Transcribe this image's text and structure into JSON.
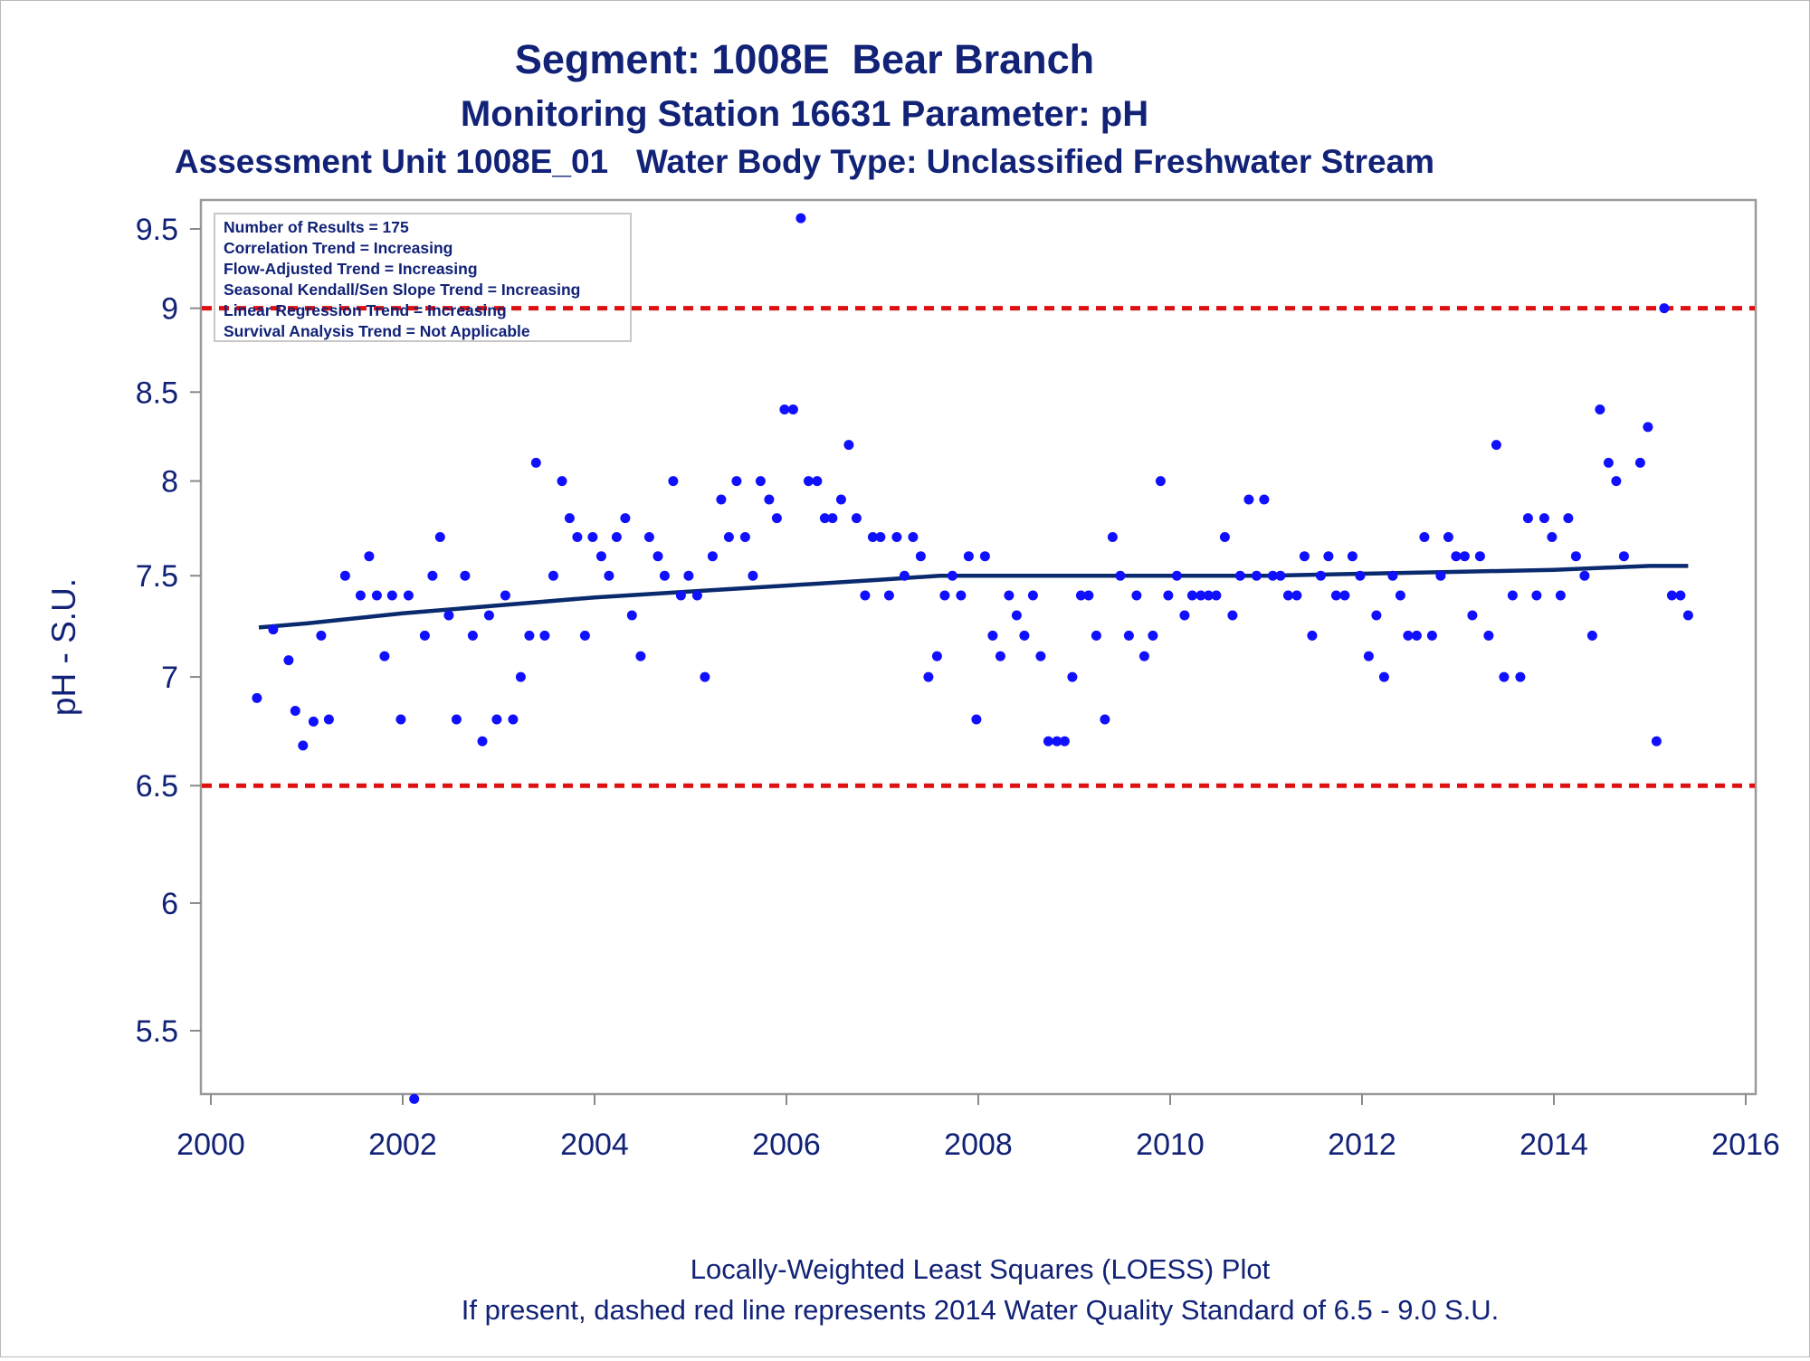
{
  "titles": {
    "line1": "Segment: 1008E  Bear Branch",
    "line2": "Monitoring Station 16631 Parameter: pH",
    "line3": "Assessment Unit 1008E_01   Water Body Type: Unclassified Freshwater Stream"
  },
  "stats_box": [
    "Number of Results = 175",
    "Correlation Trend = Increasing",
    "Flow-Adjusted Trend = Increasing",
    "Seasonal Kendall/Sen Slope Trend = Increasing",
    "Linear Regression Trend = Increasing",
    "Survival Analysis Trend = Not Applicable"
  ],
  "footnotes": {
    "line1": "Locally-Weighted Least Squares (LOESS) Plot",
    "line2": "If present, dashed red line represents 2014 Water Quality Standard of 6.5 - 9.0 S.U."
  },
  "colors": {
    "points": "#1010ff",
    "loess": "#0a2a6e",
    "standard": "#dd1111",
    "text": "#112277"
  },
  "chart_data": {
    "type": "scatter",
    "title": "Segment: 1008E  Bear Branch",
    "xlabel": "",
    "ylabel": "pH - S.U.",
    "y_scale": "log",
    "xlim": [
      2000,
      2016
    ],
    "ylim": [
      5.2,
      9.7
    ],
    "x_ticks": [
      2000,
      2002,
      2004,
      2006,
      2008,
      2010,
      2012,
      2014,
      2016
    ],
    "y_ticks": [
      5.5,
      6,
      6.5,
      7,
      7.5,
      8,
      8.5,
      9,
      9.5
    ],
    "y_tick_labels": [
      "5.5",
      "6",
      "6.5",
      "7",
      "7.5",
      "8",
      "8.5",
      "9",
      "9.5"
    ],
    "grid": false,
    "legend": "none",
    "reference_lines": [
      {
        "y": 9.0,
        "style": "dashed",
        "color": "red"
      },
      {
        "y": 6.5,
        "style": "dashed",
        "color": "red"
      }
    ],
    "series": [
      {
        "type": "scatter",
        "points": [
          [
            2000.48,
            6.9
          ],
          [
            2000.65,
            7.23
          ],
          [
            2000.81,
            7.08
          ],
          [
            2000.88,
            6.84
          ],
          [
            2000.96,
            6.68
          ],
          [
            2001.07,
            6.79
          ],
          [
            2001.15,
            7.2
          ],
          [
            2001.23,
            6.8
          ],
          [
            2001.4,
            7.5
          ],
          [
            2001.56,
            7.4
          ],
          [
            2001.65,
            7.6
          ],
          [
            2001.73,
            7.4
          ],
          [
            2001.81,
            7.1
          ],
          [
            2001.89,
            7.4
          ],
          [
            2001.98,
            6.8
          ],
          [
            2002.06,
            7.4
          ],
          [
            2002.12,
            5.25
          ],
          [
            2002.23,
            7.2
          ],
          [
            2002.31,
            7.5
          ],
          [
            2002.39,
            7.7
          ],
          [
            2002.48,
            7.3
          ],
          [
            2002.56,
            6.8
          ],
          [
            2002.65,
            7.5
          ],
          [
            2002.73,
            7.2
          ],
          [
            2002.83,
            6.7
          ],
          [
            2002.9,
            7.3
          ],
          [
            2002.98,
            6.8
          ],
          [
            2003.07,
            7.4
          ],
          [
            2003.15,
            6.8
          ],
          [
            2003.23,
            7.0
          ],
          [
            2003.32,
            7.2
          ],
          [
            2003.39,
            8.1
          ],
          [
            2003.48,
            7.2
          ],
          [
            2003.57,
            7.5
          ],
          [
            2003.66,
            8.0
          ],
          [
            2003.74,
            7.8
          ],
          [
            2003.82,
            7.7
          ],
          [
            2003.9,
            7.2
          ],
          [
            2003.98,
            7.7
          ],
          [
            2004.07,
            7.6
          ],
          [
            2004.15,
            7.5
          ],
          [
            2004.23,
            7.7
          ],
          [
            2004.32,
            7.8
          ],
          [
            2004.39,
            7.3
          ],
          [
            2004.48,
            7.1
          ],
          [
            2004.57,
            7.7
          ],
          [
            2004.66,
            7.6
          ],
          [
            2004.73,
            7.5
          ],
          [
            2004.82,
            8.0
          ],
          [
            2004.9,
            7.4
          ],
          [
            2004.98,
            7.5
          ],
          [
            2005.07,
            7.4
          ],
          [
            2005.15,
            7.0
          ],
          [
            2005.23,
            7.6
          ],
          [
            2005.32,
            7.9
          ],
          [
            2005.4,
            7.7
          ],
          [
            2005.48,
            8.0
          ],
          [
            2005.57,
            7.7
          ],
          [
            2005.65,
            7.5
          ],
          [
            2005.73,
            8.0
          ],
          [
            2005.82,
            7.9
          ],
          [
            2005.9,
            7.8
          ],
          [
            2005.98,
            8.4
          ],
          [
            2006.07,
            8.4
          ],
          [
            2006.15,
            9.57
          ],
          [
            2006.23,
            8.0
          ],
          [
            2006.32,
            8.0
          ],
          [
            2006.4,
            7.8
          ],
          [
            2006.48,
            7.8
          ],
          [
            2006.57,
            7.9
          ],
          [
            2006.65,
            8.2
          ],
          [
            2006.73,
            7.8
          ],
          [
            2006.82,
            7.4
          ],
          [
            2006.9,
            7.7
          ],
          [
            2006.98,
            7.7
          ],
          [
            2007.07,
            7.4
          ],
          [
            2007.15,
            7.7
          ],
          [
            2007.23,
            7.5
          ],
          [
            2007.32,
            7.7
          ],
          [
            2007.4,
            7.6
          ],
          [
            2007.48,
            7.0
          ],
          [
            2007.57,
            7.1
          ],
          [
            2007.65,
            7.4
          ],
          [
            2007.73,
            7.5
          ],
          [
            2007.82,
            7.4
          ],
          [
            2007.9,
            7.6
          ],
          [
            2007.98,
            6.8
          ],
          [
            2008.07,
            7.6
          ],
          [
            2008.15,
            7.2
          ],
          [
            2008.23,
            7.1
          ],
          [
            2008.32,
            7.4
          ],
          [
            2008.4,
            7.3
          ],
          [
            2008.48,
            7.2
          ],
          [
            2008.57,
            7.4
          ],
          [
            2008.65,
            7.1
          ],
          [
            2008.73,
            6.7
          ],
          [
            2008.82,
            6.7
          ],
          [
            2008.9,
            6.7
          ],
          [
            2008.98,
            7.0
          ],
          [
            2009.07,
            7.4
          ],
          [
            2009.15,
            7.4
          ],
          [
            2009.23,
            7.2
          ],
          [
            2009.32,
            6.8
          ],
          [
            2009.4,
            7.7
          ],
          [
            2009.48,
            7.5
          ],
          [
            2009.57,
            7.2
          ],
          [
            2009.65,
            7.4
          ],
          [
            2009.73,
            7.1
          ],
          [
            2009.82,
            7.2
          ],
          [
            2009.9,
            8.0
          ],
          [
            2009.98,
            7.4
          ],
          [
            2010.07,
            7.5
          ],
          [
            2010.15,
            7.3
          ],
          [
            2010.23,
            7.4
          ],
          [
            2010.32,
            7.4
          ],
          [
            2010.4,
            7.4
          ],
          [
            2010.48,
            7.4
          ],
          [
            2010.57,
            7.7
          ],
          [
            2010.65,
            7.3
          ],
          [
            2010.73,
            7.5
          ],
          [
            2010.82,
            7.9
          ],
          [
            2010.9,
            7.5
          ],
          [
            2010.98,
            7.9
          ],
          [
            2011.07,
            7.5
          ],
          [
            2011.15,
            7.5
          ],
          [
            2011.23,
            7.4
          ],
          [
            2011.32,
            7.4
          ],
          [
            2011.4,
            7.6
          ],
          [
            2011.48,
            7.2
          ],
          [
            2011.57,
            7.5
          ],
          [
            2011.65,
            7.6
          ],
          [
            2011.73,
            7.4
          ],
          [
            2011.82,
            7.4
          ],
          [
            2011.9,
            7.6
          ],
          [
            2011.98,
            7.5
          ],
          [
            2012.07,
            7.1
          ],
          [
            2012.15,
            7.3
          ],
          [
            2012.23,
            7.0
          ],
          [
            2012.32,
            7.5
          ],
          [
            2012.4,
            7.4
          ],
          [
            2012.48,
            7.2
          ],
          [
            2012.57,
            7.2
          ],
          [
            2012.65,
            7.7
          ],
          [
            2012.73,
            7.2
          ],
          [
            2012.82,
            7.5
          ],
          [
            2012.9,
            7.7
          ],
          [
            2012.98,
            7.6
          ],
          [
            2013.07,
            7.6
          ],
          [
            2013.15,
            7.3
          ],
          [
            2013.23,
            7.6
          ],
          [
            2013.32,
            7.2
          ],
          [
            2013.4,
            8.2
          ],
          [
            2013.48,
            7.0
          ],
          [
            2013.57,
            7.4
          ],
          [
            2013.65,
            7.0
          ],
          [
            2013.73,
            7.8
          ],
          [
            2013.82,
            7.4
          ],
          [
            2013.9,
            7.8
          ],
          [
            2013.98,
            7.7
          ],
          [
            2014.07,
            7.4
          ],
          [
            2014.15,
            7.8
          ],
          [
            2014.23,
            7.6
          ],
          [
            2014.32,
            7.5
          ],
          [
            2014.4,
            7.2
          ],
          [
            2014.48,
            8.4
          ],
          [
            2014.57,
            8.1
          ],
          [
            2014.65,
            8.0
          ],
          [
            2014.73,
            7.6
          ],
          [
            2014.9,
            8.1
          ],
          [
            2014.98,
            8.3
          ],
          [
            2015.07,
            6.7
          ],
          [
            2015.15,
            9.0
          ],
          [
            2015.23,
            7.4
          ],
          [
            2015.32,
            7.4
          ],
          [
            2015.4,
            7.3
          ]
        ]
      },
      {
        "type": "line",
        "points": [
          [
            2000.5,
            7.24
          ],
          [
            2001.0,
            7.26
          ],
          [
            2002.0,
            7.31
          ],
          [
            2003.0,
            7.35
          ],
          [
            2004.0,
            7.39
          ],
          [
            2005.0,
            7.42
          ],
          [
            2006.0,
            7.45
          ],
          [
            2007.0,
            7.48
          ],
          [
            2007.6,
            7.5
          ],
          [
            2008.0,
            7.5
          ],
          [
            2009.0,
            7.5
          ],
          [
            2010.0,
            7.5
          ],
          [
            2011.0,
            7.5
          ],
          [
            2012.0,
            7.51
          ],
          [
            2013.0,
            7.52
          ],
          [
            2014.0,
            7.53
          ],
          [
            2015.0,
            7.55
          ],
          [
            2015.4,
            7.55
          ]
        ]
      }
    ]
  }
}
